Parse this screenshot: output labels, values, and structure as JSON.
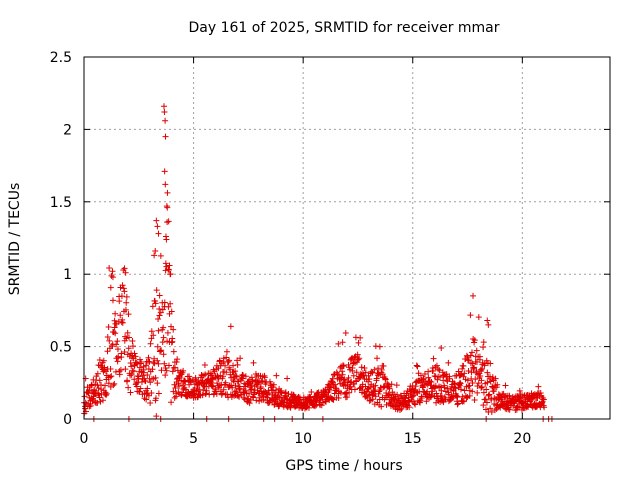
{
  "chart_data": {
    "type": "scatter",
    "title": "Day 161 of 2025, SRMTID for receiver mmar",
    "xlabel": "GPS time / hours",
    "ylabel": "SRMTID / TECUs",
    "xlim": [
      0,
      24
    ],
    "ylim": [
      0,
      2.5
    ],
    "xticks": [
      0,
      5,
      10,
      15,
      20
    ],
    "xtick_labels": [
      "0",
      "5",
      "10",
      "15",
      "20"
    ],
    "yticks": [
      0,
      0.5,
      1,
      1.5,
      2,
      2.5
    ],
    "ytick_labels": [
      "0",
      "0.5",
      "1",
      "1.5",
      "2",
      "2.5"
    ],
    "grid": true,
    "marker": "+",
    "series_color": "#e00000",
    "activity_profile": [
      [
        0.0,
        0.1,
        0.16
      ],
      [
        0.5,
        0.18,
        0.2
      ],
      [
        1.0,
        0.3,
        0.45
      ],
      [
        1.2,
        0.55,
        0.85
      ],
      [
        1.5,
        0.45,
        0.5
      ],
      [
        1.8,
        0.7,
        0.95
      ],
      [
        2.0,
        0.4,
        0.6
      ],
      [
        2.3,
        0.3,
        0.3
      ],
      [
        2.6,
        0.25,
        0.25
      ],
      [
        3.0,
        0.25,
        0.35
      ],
      [
        3.3,
        0.4,
        1.0
      ],
      [
        3.5,
        0.5,
        0.6
      ],
      [
        3.7,
        0.5,
        0.7
      ],
      [
        3.8,
        0.9,
        1.4
      ],
      [
        4.0,
        0.35,
        0.7
      ],
      [
        4.3,
        0.25,
        0.2
      ],
      [
        5.0,
        0.2,
        0.15
      ],
      [
        5.5,
        0.22,
        0.15
      ],
      [
        6.0,
        0.25,
        0.2
      ],
      [
        6.5,
        0.28,
        0.35
      ],
      [
        7.0,
        0.22,
        0.15
      ],
      [
        7.5,
        0.18,
        0.2
      ],
      [
        8.0,
        0.2,
        0.2
      ],
      [
        9.0,
        0.13,
        0.12
      ],
      [
        10.0,
        0.1,
        0.08
      ],
      [
        11.0,
        0.14,
        0.1
      ],
      [
        11.5,
        0.22,
        0.2
      ],
      [
        12.0,
        0.25,
        0.25
      ],
      [
        12.5,
        0.3,
        0.25
      ],
      [
        13.0,
        0.2,
        0.2
      ],
      [
        13.5,
        0.2,
        0.3
      ],
      [
        14.0,
        0.12,
        0.12
      ],
      [
        14.5,
        0.1,
        0.1
      ],
      [
        15.0,
        0.15,
        0.15
      ],
      [
        15.5,
        0.2,
        0.2
      ],
      [
        16.0,
        0.22,
        0.3
      ],
      [
        16.5,
        0.2,
        0.2
      ],
      [
        17.0,
        0.18,
        0.2
      ],
      [
        17.5,
        0.25,
        0.35
      ],
      [
        17.8,
        0.3,
        0.45
      ],
      [
        18.2,
        0.2,
        0.3
      ],
      [
        18.5,
        0.18,
        0.4
      ],
      [
        19.0,
        0.12,
        0.12
      ],
      [
        19.5,
        0.1,
        0.1
      ],
      [
        20.0,
        0.1,
        0.1
      ],
      [
        20.5,
        0.12,
        0.1
      ],
      [
        21.0,
        0.12,
        0.1
      ]
    ],
    "extra_points": [
      [
        3.65,
        2.16
      ],
      [
        3.67,
        2.12
      ],
      [
        3.7,
        2.06
      ],
      [
        3.72,
        1.95
      ],
      [
        3.68,
        1.71
      ],
      [
        3.71,
        1.62
      ],
      [
        3.78,
        1.47
      ],
      [
        3.8,
        1.46
      ],
      [
        3.74,
        1.26
      ],
      [
        3.76,
        1.24
      ],
      [
        3.3,
        1.37
      ],
      [
        3.35,
        1.33
      ],
      [
        3.4,
        1.28
      ],
      [
        3.25,
        1.16
      ],
      [
        3.2,
        1.13
      ],
      [
        3.9,
        1.06
      ],
      [
        3.88,
        1.03
      ],
      [
        1.3,
        1.02
      ],
      [
        1.32,
        0.98
      ],
      [
        1.85,
        1.04
      ],
      [
        1.9,
        1.01
      ],
      [
        6.7,
        0.64
      ],
      [
        12.6,
        0.56
      ],
      [
        17.75,
        0.85
      ],
      [
        18.4,
        0.68
      ],
      [
        18.45,
        0.65
      ],
      [
        11.8,
        0.53
      ],
      [
        16.3,
        0.49
      ],
      [
        13.5,
        0.5
      ]
    ],
    "zero_points_x": [
      0.45,
      2.05,
      3.5,
      5.6,
      6.6,
      8.2,
      8.7,
      9.5,
      10.9,
      18.35,
      20.95,
      21.2,
      21.35
    ]
  }
}
